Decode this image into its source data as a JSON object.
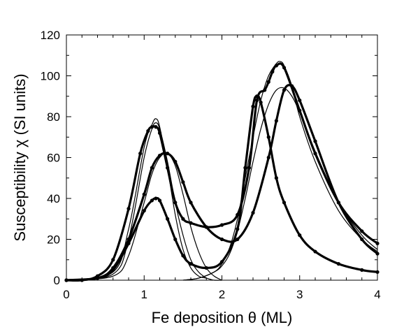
{
  "chart_data": {
    "type": "scatter",
    "xlabel": "Fe deposition θ (ML)",
    "ylabel": "Susceptibility χ (SI units)",
    "xlim": [
      0,
      4
    ],
    "ylim": [
      0,
      120
    ],
    "x_ticks": [
      0,
      1,
      2,
      3,
      4
    ],
    "y_ticks": [
      0,
      20,
      40,
      60,
      80,
      100,
      120
    ],
    "x_tick_labels": [
      "0",
      "1",
      "2",
      "3",
      "4"
    ],
    "y_tick_labels": [
      "0",
      "20",
      "40",
      "60",
      "80",
      "100",
      "120"
    ],
    "grid": false,
    "legend": "none",
    "colors": {
      "data": "#000000",
      "fit": "#000000"
    },
    "series": [
      {
        "style": "points",
        "x": [
          0.0,
          0.2,
          0.4,
          0.6,
          0.8,
          0.95,
          1.05,
          1.1,
          1.15,
          1.2,
          1.3,
          1.4,
          1.5,
          1.6,
          1.8,
          2.0,
          2.2,
          2.35,
          2.45,
          2.55,
          2.6,
          2.65,
          2.7,
          2.8,
          3.0,
          3.2,
          3.5,
          3.8,
          4.0
        ],
        "y": [
          0,
          0,
          2,
          10,
          35,
          62,
          73,
          75,
          75,
          72,
          55,
          38,
          30,
          28,
          26,
          27,
          32,
          55,
          88,
          93,
          97,
          102,
          105,
          104,
          83,
          62,
          38,
          24,
          18
        ]
      },
      {
        "style": "points",
        "x": [
          0.0,
          0.4,
          0.6,
          0.8,
          1.0,
          1.1,
          1.2,
          1.3,
          1.4,
          1.5,
          1.6,
          1.8,
          2.0,
          2.2,
          2.4,
          2.6,
          2.7,
          2.8,
          2.9,
          3.0,
          3.2,
          3.5,
          3.8,
          4.0
        ],
        "y": [
          0,
          1,
          6,
          20,
          42,
          55,
          61,
          62,
          58,
          48,
          38,
          26,
          20,
          20,
          33,
          60,
          78,
          93,
          95,
          88,
          68,
          38,
          20,
          13
        ]
      },
      {
        "style": "points",
        "x": [
          0.0,
          0.4,
          0.6,
          0.8,
          1.0,
          1.1,
          1.15,
          1.2,
          1.3,
          1.4,
          1.5,
          1.6,
          1.8,
          2.0,
          2.2,
          2.3,
          2.4,
          2.45,
          2.5,
          2.6,
          2.7,
          2.8,
          3.0,
          3.2,
          3.5,
          3.8,
          4.0
        ],
        "y": [
          0,
          1,
          5,
          18,
          34,
          39,
          40,
          39,
          30,
          20,
          12,
          8,
          6,
          9,
          25,
          55,
          85,
          90,
          87,
          70,
          50,
          38,
          22,
          14,
          8,
          5,
          4
        ]
      },
      {
        "style": "line",
        "x": [
          0.0,
          0.6,
          0.8,
          1.0,
          1.1,
          1.15,
          1.2,
          1.3,
          1.4,
          1.5,
          1.6,
          1.7,
          1.8,
          1.9,
          2.0
        ],
        "y": [
          0,
          4,
          25,
          65,
          76,
          79,
          75,
          55,
          32,
          15,
          6,
          2,
          1,
          0,
          0
        ]
      },
      {
        "style": "line",
        "x": [
          0.0,
          0.6,
          0.8,
          1.0,
          1.1,
          1.15,
          1.2,
          1.3,
          1.4,
          1.5,
          1.6,
          1.7,
          1.8
        ],
        "y": [
          0,
          3,
          20,
          60,
          74,
          77,
          74,
          58,
          38,
          22,
          10,
          4,
          1
        ]
      },
      {
        "style": "line",
        "x": [
          0.0,
          0.6,
          0.8,
          1.0,
          1.1,
          1.2,
          1.3,
          1.4,
          1.5,
          1.6,
          1.7,
          1.8,
          1.9,
          2.0
        ],
        "y": [
          0,
          2,
          12,
          38,
          52,
          60,
          62,
          56,
          42,
          26,
          14,
          6,
          2,
          0
        ]
      },
      {
        "style": "line",
        "x": [
          1.5,
          1.7,
          1.9,
          2.0,
          2.1,
          2.2,
          2.3,
          2.4,
          2.5,
          2.6,
          2.7,
          2.75,
          2.8,
          2.9,
          3.0,
          3.2,
          3.5,
          3.8,
          4.0
        ],
        "y": [
          0,
          1,
          4,
          8,
          16,
          30,
          50,
          70,
          88,
          100,
          106,
          107,
          105,
          95,
          80,
          58,
          34,
          20,
          14
        ]
      },
      {
        "style": "line",
        "x": [
          1.5,
          1.7,
          1.9,
          2.0,
          2.1,
          2.2,
          2.3,
          2.4,
          2.5,
          2.6,
          2.7,
          2.8,
          2.9,
          3.0,
          3.2,
          3.5,
          3.8,
          4.0
        ],
        "y": [
          0,
          1,
          4,
          7,
          13,
          24,
          40,
          58,
          74,
          86,
          93,
          94,
          90,
          82,
          63,
          38,
          22,
          15
        ]
      }
    ]
  }
}
